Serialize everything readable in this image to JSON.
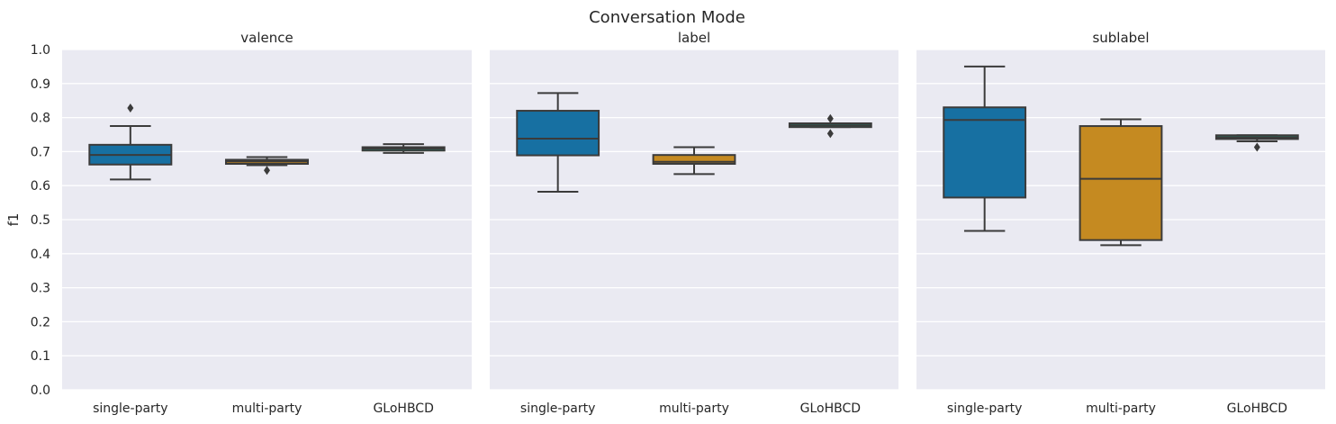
{
  "chart_data": {
    "type": "boxplot",
    "suptitle": "Conversation Mode",
    "ylabel": "f1",
    "ylim": [
      0.0,
      1.0
    ],
    "yticks": [
      0.0,
      0.1,
      0.2,
      0.3,
      0.4,
      0.5,
      0.6,
      0.7,
      0.8,
      0.9,
      1.0
    ],
    "ytick_labels": [
      "0.0",
      "0.1",
      "0.2",
      "0.3",
      "0.4",
      "0.5",
      "0.6",
      "0.7",
      "0.8",
      "0.9",
      "1.0"
    ],
    "categories": [
      "single-party",
      "multi-party",
      "GLoHBCD"
    ],
    "colors": {
      "single-party": "#1770a2",
      "multi-party": "#c58a21",
      "GLoHBCD": "#1a9a7c"
    },
    "grid": true,
    "legend": "none",
    "panels": [
      {
        "title": "valence",
        "boxes": [
          {
            "category": "single-party",
            "whisker_low": 0.618,
            "q1": 0.662,
            "median": 0.69,
            "q3": 0.72,
            "whisker_high": 0.775,
            "outliers": [
              0.828
            ]
          },
          {
            "category": "multi-party",
            "whisker_low": 0.66,
            "q1": 0.664,
            "median": 0.671,
            "q3": 0.676,
            "whisker_high": 0.684,
            "outliers": [
              0.645
            ]
          },
          {
            "category": "GLoHBCD",
            "whisker_low": 0.696,
            "q1": 0.703,
            "median": 0.709,
            "q3": 0.713,
            "whisker_high": 0.722,
            "outliers": []
          }
        ]
      },
      {
        "title": "label",
        "boxes": [
          {
            "category": "single-party",
            "whisker_low": 0.582,
            "q1": 0.689,
            "median": 0.738,
            "q3": 0.82,
            "whisker_high": 0.872,
            "outliers": []
          },
          {
            "category": "multi-party",
            "whisker_low": 0.634,
            "q1": 0.664,
            "median": 0.67,
            "q3": 0.69,
            "whisker_high": 0.713,
            "outliers": []
          },
          {
            "category": "GLoHBCD",
            "whisker_low": 0.772,
            "q1": 0.772,
            "median": 0.777,
            "q3": 0.783,
            "whisker_high": 0.783,
            "outliers": [
              0.797,
              0.753
            ]
          }
        ]
      },
      {
        "title": "sublabel",
        "boxes": [
          {
            "category": "single-party",
            "whisker_low": 0.467,
            "q1": 0.565,
            "median": 0.793,
            "q3": 0.83,
            "whisker_high": 0.95,
            "outliers": []
          },
          {
            "category": "multi-party",
            "whisker_low": 0.425,
            "q1": 0.44,
            "median": 0.62,
            "q3": 0.775,
            "whisker_high": 0.795,
            "outliers": []
          },
          {
            "category": "GLoHBCD",
            "whisker_low": 0.73,
            "q1": 0.737,
            "median": 0.742,
            "q3": 0.748,
            "whisker_high": 0.748,
            "outliers": [
              0.713
            ]
          }
        ]
      }
    ]
  }
}
